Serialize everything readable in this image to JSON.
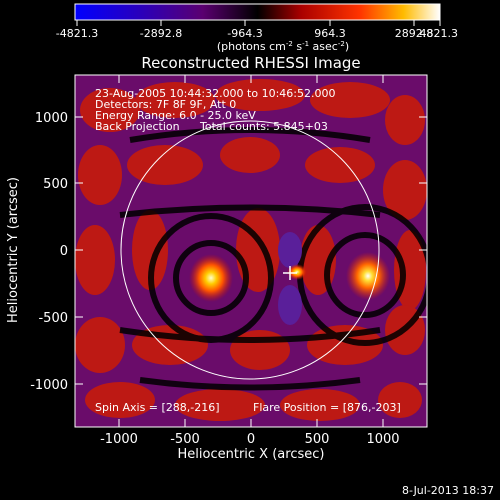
{
  "colorbar": {
    "ticks": [
      "-4821.3",
      "-2892.8",
      "-964.3",
      "964.3",
      "2892.8",
      "4821.3"
    ],
    "units_main": "(photons cm",
    "units_exp1": "-2",
    "units_mid": " s",
    "units_exp2": "-1",
    "units_end": " asec",
    "units_exp3": "-2",
    "units_close": ")"
  },
  "title": "Reconstructed RHESSI Image",
  "info": {
    "line1": "23-Aug-2005 10:44:32.000 to 10:46:52.000",
    "line2": "Detectors: 7F 8F 9F, Att 0",
    "line3": "Energy Range: 6.0 - 25.0 keV",
    "line4a": "Back Projection",
    "line4b": "Total counts: 5.845+03"
  },
  "footer": {
    "spin_axis": "Spin Axis = [288,-216]",
    "flare_position": "Flare Position = [876,-203]",
    "date_stamp": "8-Jul-2013 18:37"
  },
  "axes": {
    "xlabel": "Heliocentric X (arcsec)",
    "ylabel": "Heliocentric Y (arcsec)",
    "x_ticks": [
      "-1000",
      "-500",
      "0",
      "500",
      "1000"
    ],
    "y_ticks": [
      "1000",
      "500",
      "0",
      "-500",
      "-1000"
    ]
  },
  "colors": {
    "colormap": [
      "#0000ff",
      "#3300aa",
      "#550077",
      "#440044",
      "#000000",
      "#880000",
      "#dd1100",
      "#ff6600",
      "#ffcc00",
      "#ffffff"
    ]
  }
}
